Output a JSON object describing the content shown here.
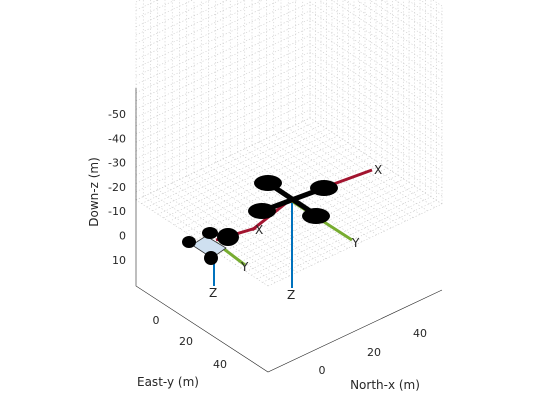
{
  "chart_data": {
    "type": "3d-scene",
    "title": "",
    "axes": {
      "x": {
        "label": "North-x (m)",
        "ticks": [
          "0",
          "20",
          "40"
        ]
      },
      "y": {
        "label": "East-y (m)",
        "ticks": [
          "0",
          "20",
          "40"
        ]
      },
      "z": {
        "label": "Down-z (m)",
        "ticks": [
          "-50",
          "-40",
          "-30",
          "-20",
          "-10",
          "0",
          "10"
        ],
        "reversed": true
      }
    },
    "grid": "on (dotted, all walls)",
    "objects": [
      {
        "name": "small quadrotor",
        "frame_labels": [
          "X",
          "Y",
          "Z"
        ]
      },
      {
        "name": "large quadrotor",
        "frame_labels": [
          "X",
          "Y",
          "Z"
        ]
      }
    ],
    "colors": {
      "x_axis_arrow": "#A2142F",
      "y_axis_arrow": "#77AC30",
      "z_axis_arrow": "#0072BD",
      "rotor": "#000000",
      "grid": "#c8c8c8",
      "box": "#262626"
    }
  }
}
